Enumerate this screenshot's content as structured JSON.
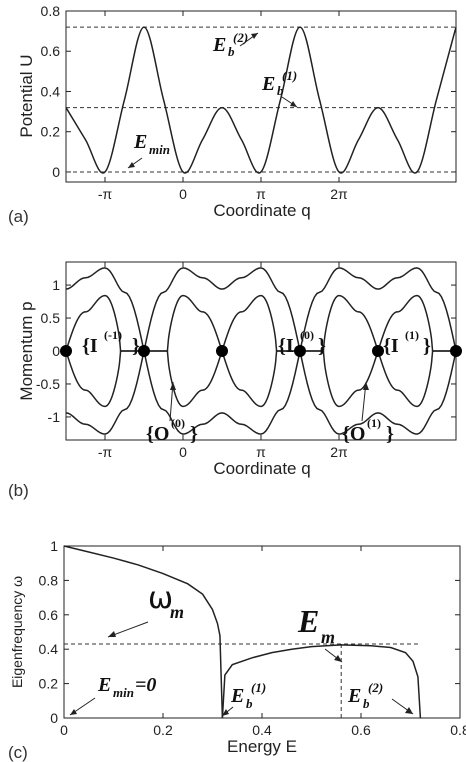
{
  "chart_data": [
    {
      "type": "line",
      "panel": "(a)",
      "xlabel": "Coordinate q",
      "ylabel": "Potential U",
      "xlim": [
        -1.5,
        3.5
      ],
      "ylim": [
        -0.05,
        0.8
      ],
      "xticks": [
        {
          "v": -1,
          "label": "-π"
        },
        {
          "v": 0,
          "label": "0"
        },
        {
          "v": 1,
          "label": "π"
        },
        {
          "v": 2,
          "label": "2π"
        }
      ],
      "yticks": [
        {
          "v": 0,
          "label": "0"
        },
        {
          "v": 0.2,
          "label": "0.2"
        },
        {
          "v": 0.4,
          "label": "0.4"
        },
        {
          "v": 0.6,
          "label": "0.6"
        },
        {
          "v": 0.8,
          "label": "0.8"
        }
      ],
      "x_unit_note": "x values in units of π",
      "curve_points": [
        [
          -1.5,
          0.32
        ],
        [
          -1.25,
          0.16
        ],
        [
          -1.0,
          0.0
        ],
        [
          -0.75,
          0.36
        ],
        [
          -0.5,
          0.72
        ],
        [
          -0.25,
          0.36
        ],
        [
          0.0,
          0.0
        ],
        [
          0.25,
          0.16
        ],
        [
          0.5,
          0.32
        ],
        [
          0.75,
          0.16
        ],
        [
          1.0,
          0.0
        ],
        [
          1.25,
          0.36
        ],
        [
          1.5,
          0.72
        ],
        [
          1.75,
          0.36
        ],
        [
          2.0,
          0.0
        ],
        [
          2.25,
          0.16
        ],
        [
          2.5,
          0.32
        ],
        [
          2.75,
          0.16
        ],
        [
          3.0,
          0.0
        ],
        [
          3.25,
          0.36
        ],
        [
          3.5,
          0.72
        ]
      ],
      "dashed_levels": [
        0.72,
        0.32,
        0.0
      ],
      "annotations": [
        {
          "main": "E",
          "sub": "b",
          "sup": "(2)"
        },
        {
          "main": "E",
          "sub": "b",
          "sup": "(1)"
        },
        {
          "main": "E",
          "sub": "min"
        }
      ]
    },
    {
      "type": "line",
      "panel": "(b)",
      "xlabel": "Coordinate q",
      "ylabel": "Momentum p",
      "xlim": [
        -1.5,
        3.5
      ],
      "ylim": [
        -1.35,
        1.35
      ],
      "xticks": [
        {
          "v": -1,
          "label": "-π"
        },
        {
          "v": 0,
          "label": "0"
        },
        {
          "v": 1,
          "label": "π"
        },
        {
          "v": 2,
          "label": "2π"
        }
      ],
      "yticks": [
        {
          "v": 1,
          "label": "1"
        },
        {
          "v": 0.5,
          "label": "0.5"
        },
        {
          "v": 0,
          "label": "0"
        },
        {
          "v": -0.5,
          "label": "-0.5"
        },
        {
          "v": -1,
          "label": "-1"
        }
      ],
      "x_unit_note": "x values in units of π",
      "saddle_points": [
        [
          -1.5,
          0
        ],
        [
          -0.5,
          0
        ],
        [
          0.5,
          0
        ],
        [
          1.5,
          0
        ],
        [
          2.5,
          0
        ],
        [
          3.5,
          0
        ]
      ],
      "annotations": [
        {
          "main": "{I",
          "sup": "(-1)",
          "tail": "}"
        },
        {
          "main": "{I",
          "sup": "(0)",
          "tail": "}"
        },
        {
          "main": "{I",
          "sup": "(1)",
          "tail": "}"
        },
        {
          "main": "{O",
          "sup": "(0)",
          "tail": "}"
        },
        {
          "main": "{O",
          "sup": "(1)",
          "tail": "}"
        }
      ]
    },
    {
      "type": "line",
      "panel": "(c)",
      "xlabel": "Energy E",
      "ylabel": "Eigenfrequency ω",
      "xlim": [
        0,
        0.8
      ],
      "ylim": [
        0,
        1.0
      ],
      "xticks": [
        {
          "v": 0,
          "label": "0"
        },
        {
          "v": 0.2,
          "label": "0.2"
        },
        {
          "v": 0.4,
          "label": "0.4"
        },
        {
          "v": 0.6,
          "label": "0.6"
        },
        {
          "v": 0.8,
          "label": "0.8"
        }
      ],
      "yticks": [
        {
          "v": 0,
          "label": "0"
        },
        {
          "v": 0.2,
          "label": "0.2"
        },
        {
          "v": 0.4,
          "label": "0.4"
        },
        {
          "v": 0.6,
          "label": "0.6"
        },
        {
          "v": 0.8,
          "label": "0.8"
        },
        {
          "v": 1,
          "label": "1"
        }
      ],
      "series": [
        {
          "values_xy": [
            [
              0.0,
              1.0
            ],
            [
              0.05,
              0.965
            ],
            [
              0.1,
              0.93
            ],
            [
              0.15,
              0.89
            ],
            [
              0.2,
              0.84
            ],
            [
              0.25,
              0.78
            ],
            [
              0.28,
              0.72
            ],
            [
              0.3,
              0.63
            ],
            [
              0.31,
              0.55
            ],
            [
              0.315,
              0.48
            ],
            [
              0.32,
              0.0
            ]
          ]
        },
        {
          "values_xy": [
            [
              0.32,
              0.0
            ],
            [
              0.325,
              0.25
            ],
            [
              0.34,
              0.31
            ],
            [
              0.38,
              0.35
            ],
            [
              0.42,
              0.38
            ],
            [
              0.46,
              0.4
            ],
            [
              0.5,
              0.415
            ],
            [
              0.56,
              0.425
            ],
            [
              0.62,
              0.42
            ],
            [
              0.66,
              0.41
            ],
            [
              0.69,
              0.38
            ],
            [
              0.705,
              0.33
            ],
            [
              0.715,
              0.24
            ],
            [
              0.72,
              0.0
            ]
          ]
        }
      ],
      "dashed_omega_m": 0.43,
      "dashed_E_m": 0.56,
      "annotations": [
        {
          "main": "ω",
          "sub": "m"
        },
        {
          "main": "E",
          "sub": "m"
        },
        {
          "main": "E",
          "sub": "min",
          "tail": "=0"
        },
        {
          "main": "E",
          "sub": "b",
          "sup": "(1)"
        },
        {
          "main": "E",
          "sub": "b",
          "sup": "(2)"
        }
      ]
    }
  ]
}
